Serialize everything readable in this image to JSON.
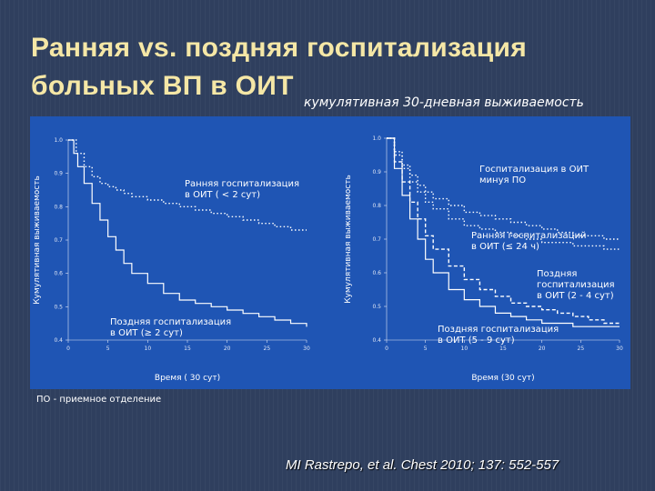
{
  "slide": {
    "title_line1": "Ранняя vs. поздняя госпитализация",
    "title_line2": "больных ВП в ОИТ",
    "subtitle": "кумулятивная 30-дневная выживаемость",
    "footnote": "ПО - приемное отделение",
    "citation": "MI Rastrepo, et al. Chest 2010; 137: 552-557",
    "colors": {
      "background": "#2f3f5e",
      "title": "#f5e7a6",
      "panel": "#1f55b4",
      "curve": "#ffffff"
    }
  },
  "chart_data": [
    {
      "type": "line",
      "xlabel": "Время ( 30 сут)",
      "ylabel": "Кумулятивная выживаемость",
      "xlim": [
        0,
        30
      ],
      "ylim": [
        0.4,
        1.0
      ],
      "xticks": [
        "0",
        "5",
        "10",
        "15",
        "20",
        "25",
        "30"
      ],
      "yticks": [
        "0.4",
        "0.5",
        "0.6",
        "0.7",
        "0.8",
        "0.9",
        "1.0"
      ],
      "series": [
        {
          "name": "Ранняя госпитализация в ОИТ (< 2 сут)",
          "style": "dotted",
          "x": [
            0,
            1,
            2,
            3,
            4,
            5,
            6,
            7,
            8,
            10,
            12,
            14,
            16,
            18,
            20,
            22,
            24,
            26,
            28,
            30
          ],
          "y": [
            1.0,
            0.96,
            0.92,
            0.89,
            0.87,
            0.86,
            0.85,
            0.84,
            0.83,
            0.82,
            0.81,
            0.8,
            0.79,
            0.78,
            0.77,
            0.76,
            0.75,
            0.74,
            0.73,
            0.73
          ]
        },
        {
          "name": "Поздняя госпитализация в ОИТ (≥ 2 сут)",
          "style": "solid",
          "x": [
            0,
            0.7,
            1.2,
            2,
            3,
            4,
            5,
            6,
            7,
            8,
            10,
            12,
            14,
            16,
            18,
            20,
            22,
            24,
            26,
            28,
            30
          ],
          "y": [
            1.0,
            0.96,
            0.92,
            0.87,
            0.81,
            0.76,
            0.71,
            0.67,
            0.63,
            0.6,
            0.57,
            0.54,
            0.52,
            0.51,
            0.5,
            0.49,
            0.48,
            0.47,
            0.46,
            0.45,
            0.44
          ]
        }
      ],
      "annotations": [
        {
          "line1": "Ранняя госпитализация",
          "line2": "в ОИТ ( < 2 сут)"
        },
        {
          "line1": "Поздняя госпитализация",
          "line2": "в ОИТ (≥ 2 сут)"
        }
      ]
    },
    {
      "type": "line",
      "xlabel": "Время (30 сут)",
      "ylabel": "Кумулятивная выживаемость",
      "xlim": [
        0,
        30
      ],
      "ylim": [
        0.4,
        1.0
      ],
      "xticks": [
        "0",
        "5",
        "10",
        "15",
        "20",
        "25",
        "30"
      ],
      "yticks": [
        "0.4",
        "0.5",
        "0.6",
        "0.7",
        "0.8",
        "0.9",
        "1.0"
      ],
      "series": [
        {
          "name": "Госпитализация в ОИТ минуя ПО",
          "style": "dotted",
          "x": [
            0,
            1,
            2,
            3,
            4,
            5,
            6,
            8,
            10,
            12,
            14,
            16,
            18,
            20,
            22,
            24,
            26,
            28,
            30
          ],
          "y": [
            1.0,
            0.96,
            0.92,
            0.89,
            0.86,
            0.84,
            0.82,
            0.8,
            0.78,
            0.77,
            0.76,
            0.75,
            0.74,
            0.73,
            0.72,
            0.71,
            0.71,
            0.7,
            0.7
          ]
        },
        {
          "name": "Ранняя госпитализаций в ОИТ (≤ 24 ч)",
          "style": "dotted",
          "x": [
            0,
            1,
            2,
            3,
            4,
            5,
            6,
            8,
            10,
            12,
            14,
            16,
            18,
            20,
            22,
            24,
            26,
            28,
            30
          ],
          "y": [
            1.0,
            0.95,
            0.91,
            0.87,
            0.84,
            0.81,
            0.79,
            0.76,
            0.74,
            0.73,
            0.72,
            0.71,
            0.7,
            0.69,
            0.69,
            0.68,
            0.68,
            0.67,
            0.67
          ]
        },
        {
          "name": "Поздняя госпитализация в ОИТ (2 - 4 сут)",
          "style": "dashed",
          "x": [
            0,
            1,
            2,
            3,
            4,
            5,
            6,
            8,
            10,
            12,
            14,
            16,
            18,
            20,
            22,
            24,
            26,
            28,
            30
          ],
          "y": [
            1.0,
            0.93,
            0.87,
            0.81,
            0.76,
            0.71,
            0.67,
            0.62,
            0.58,
            0.55,
            0.53,
            0.51,
            0.5,
            0.49,
            0.48,
            0.47,
            0.46,
            0.45,
            0.45
          ]
        },
        {
          "name": "Поздняя госпитализация в ОИТ (5 - 9 сут)",
          "style": "solid",
          "x": [
            0,
            1,
            2,
            3,
            4,
            5,
            6,
            8,
            10,
            12,
            14,
            16,
            18,
            20,
            22,
            24,
            26,
            28,
            30
          ],
          "y": [
            1.0,
            0.91,
            0.83,
            0.76,
            0.7,
            0.64,
            0.6,
            0.55,
            0.52,
            0.5,
            0.48,
            0.47,
            0.46,
            0.45,
            0.45,
            0.44,
            0.44,
            0.44,
            0.44
          ]
        }
      ],
      "annotations": [
        {
          "line1": "Госпитализация в ОИТ",
          "line2": "минуя ПО"
        },
        {
          "line1": "Ранняя госпитализаций",
          "line2": "в ОИТ (≤ 24 ч)"
        },
        {
          "line1": "Поздняя",
          "line2": "госпитализация",
          "line3": "в ОИТ (2 - 4 сут)"
        },
        {
          "line1": "Поздняя госпитализация",
          "line2": "в ОИТ (5 - 9 сут)"
        }
      ]
    }
  ]
}
